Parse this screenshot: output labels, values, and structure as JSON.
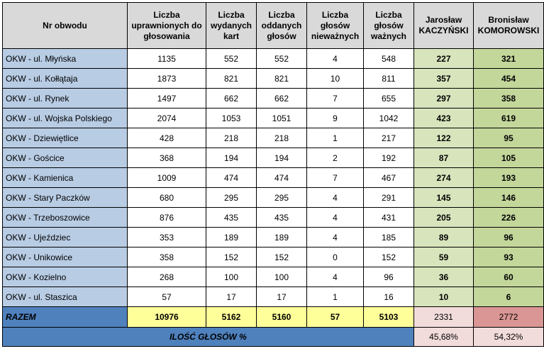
{
  "headers": {
    "district": "Nr obwodu",
    "eligible": "Liczba uprawnionych do głosowania",
    "issued": "Liczba wydanych kart",
    "cast": "Liczba oddanych głosów",
    "invalid": "Liczba głosów nieważnych",
    "valid": "Liczba głosów ważnych",
    "kaczynski": "Jarosław KACZYŃSKI",
    "komorowski": "Bronisław KOMOROWSKI"
  },
  "rows": [
    {
      "district": "OKW - ul. Młyńska",
      "eligible": "1135",
      "issued": "552",
      "cast": "552",
      "invalid": "4",
      "valid": "548",
      "kaczynski": "227",
      "komorowski": "321"
    },
    {
      "district": "OKW - ul. Kołłątaja",
      "eligible": "1873",
      "issued": "821",
      "cast": "821",
      "invalid": "10",
      "valid": "811",
      "kaczynski": "357",
      "komorowski": "454"
    },
    {
      "district": "OKW - ul. Rynek",
      "eligible": "1497",
      "issued": "662",
      "cast": "662",
      "invalid": "7",
      "valid": "655",
      "kaczynski": "297",
      "komorowski": "358"
    },
    {
      "district": "OKW - ul. Wojska Polskiego",
      "eligible": "2074",
      "issued": "1053",
      "cast": "1051",
      "invalid": "9",
      "valid": "1042",
      "kaczynski": "423",
      "komorowski": "619"
    },
    {
      "district": "OKW - Dziewiętlice",
      "eligible": "428",
      "issued": "218",
      "cast": "218",
      "invalid": "1",
      "valid": "217",
      "kaczynski": "122",
      "komorowski": "95"
    },
    {
      "district": "OKW - Gościce",
      "eligible": "368",
      "issued": "194",
      "cast": "194",
      "invalid": "2",
      "valid": "192",
      "kaczynski": "87",
      "komorowski": "105"
    },
    {
      "district": "OKW - Kamienica",
      "eligible": "1009",
      "issued": "474",
      "cast": "474",
      "invalid": "7",
      "valid": "467",
      "kaczynski": "274",
      "komorowski": "193"
    },
    {
      "district": "OKW - Stary Paczków",
      "eligible": "680",
      "issued": "295",
      "cast": "295",
      "invalid": "4",
      "valid": "291",
      "kaczynski": "145",
      "komorowski": "146"
    },
    {
      "district": "OKW - Trzeboszowice",
      "eligible": "876",
      "issued": "435",
      "cast": "435",
      "invalid": "4",
      "valid": "431",
      "kaczynski": "205",
      "komorowski": "226"
    },
    {
      "district": "OKW - Ujeździec",
      "eligible": "353",
      "issued": "189",
      "cast": "189",
      "invalid": "4",
      "valid": "185",
      "kaczynski": "89",
      "komorowski": "96"
    },
    {
      "district": "OKW - Unikowice",
      "eligible": "358",
      "issued": "152",
      "cast": "152",
      "invalid": "0",
      "valid": "152",
      "kaczynski": "59",
      "komorowski": "93"
    },
    {
      "district": "OKW - Kozielno",
      "eligible": "268",
      "issued": "100",
      "cast": "100",
      "invalid": "4",
      "valid": "96",
      "kaczynski": "36",
      "komorowski": "60"
    },
    {
      "district": "OKW - ul. Staszica",
      "eligible": "57",
      "issued": "17",
      "cast": "17",
      "invalid": "1",
      "valid": "16",
      "kaczynski": "10",
      "komorowski": "6"
    }
  ],
  "total": {
    "label": "RAZEM",
    "eligible": "10976",
    "issued": "5162",
    "cast": "5160",
    "invalid": "57",
    "valid": "5103",
    "kaczynski": "2331",
    "komorowski": "2772"
  },
  "percent": {
    "label": "ILOŚĆ GŁOSÓW %",
    "kaczynski": "45,68%",
    "komorowski": "54,32%"
  },
  "colors": {
    "header": "#d9d9d9",
    "district": "#b8cce4",
    "kaczynski": "#d8e4bc",
    "komorowski": "#c4d79b",
    "sum_label": "#4f81bd",
    "sum_yellow": "#ffff99",
    "sum_kaczynski": "#f2dcdb",
    "sum_komorowski": "#da9694"
  }
}
